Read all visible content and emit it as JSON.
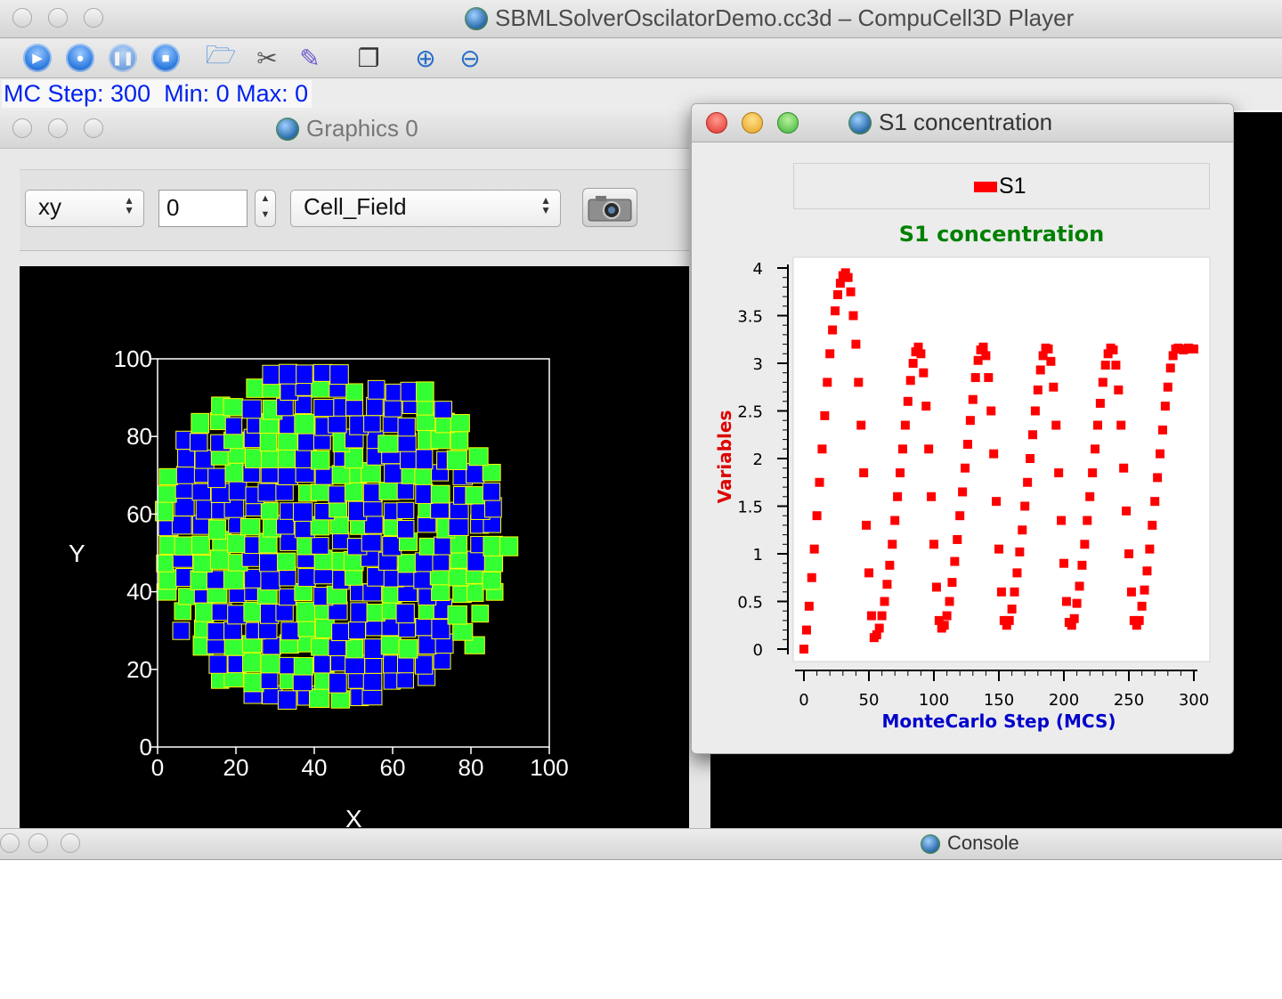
{
  "window": {
    "title": "SBMLSolverOscilatorDemo.cc3d – CompuCell3D Player"
  },
  "toolbar": {
    "buttons": [
      "run-icon",
      "step-icon",
      "pause-icon",
      "stop-icon",
      "open-folder-icon",
      "tools-icon",
      "edit-icon",
      "new-window-icon",
      "zoom-in-icon",
      "zoom-out-icon"
    ]
  },
  "status": {
    "text": "MC Step: 300  Min: 0 Max: 0"
  },
  "graphics": {
    "title": "Graphics 0",
    "projection": "xy",
    "plane_value": "0",
    "field": "Cell_Field",
    "x_label": "X",
    "y_label": "Y",
    "ticks": [
      "0",
      "20",
      "40",
      "60",
      "80",
      "100"
    ],
    "cell_colors": {
      "blue": "#0000ff",
      "green": "#33ff33",
      "border": "#ffff00"
    }
  },
  "plot": {
    "title": "S1 concentration",
    "legend": "S1",
    "series_color": "#ff0000"
  },
  "chart_data": {
    "type": "scatter",
    "title": "S1 concentration",
    "xlabel": "MonteCarlo Step (MCS)",
    "ylabel": "Variables",
    "xlim": [
      0,
      300
    ],
    "ylim": [
      0,
      4
    ],
    "x_ticks": [
      "0",
      "50",
      "100",
      "150",
      "200",
      "250",
      "300"
    ],
    "y_ticks": [
      "0",
      "0.5",
      "1",
      "1.5",
      "2",
      "2.5",
      "3",
      "3.5",
      "4"
    ],
    "legend_position": "top",
    "series": [
      {
        "name": "S1",
        "x": [
          0,
          2,
          4,
          6,
          8,
          10,
          12,
          14,
          16,
          18,
          20,
          22,
          24,
          26,
          28,
          30,
          32,
          34,
          36,
          38,
          40,
          42,
          44,
          46,
          48,
          50,
          52,
          54,
          56,
          58,
          60,
          62,
          64,
          66,
          68,
          70,
          72,
          74,
          76,
          78,
          80,
          82,
          84,
          86,
          88,
          90,
          92,
          94,
          96,
          98,
          100,
          102,
          104,
          106,
          108,
          110,
          112,
          114,
          116,
          118,
          120,
          122,
          124,
          126,
          128,
          130,
          132,
          134,
          136,
          138,
          140,
          142,
          144,
          146,
          148,
          150,
          152,
          154,
          156,
          158,
          160,
          162,
          164,
          166,
          168,
          170,
          172,
          174,
          176,
          178,
          180,
          182,
          184,
          186,
          188,
          190,
          192,
          194,
          196,
          198,
          200,
          202,
          204,
          206,
          208,
          210,
          212,
          214,
          216,
          218,
          220,
          222,
          224,
          226,
          228,
          230,
          232,
          234,
          236,
          238,
          240,
          242,
          244,
          246,
          248,
          250,
          252,
          254,
          256,
          258,
          260,
          262,
          264,
          266,
          268,
          270,
          272,
          274,
          276,
          278,
          280,
          282,
          284,
          286,
          288,
          290,
          292,
          294,
          296,
          298,
          300
        ],
        "y": [
          0,
          0.2,
          0.45,
          0.75,
          1.05,
          1.4,
          1.75,
          2.1,
          2.45,
          2.8,
          3.1,
          3.35,
          3.55,
          3.72,
          3.84,
          3.92,
          3.95,
          3.9,
          3.75,
          3.5,
          3.2,
          2.8,
          2.35,
          1.85,
          1.3,
          0.8,
          0.35,
          0.12,
          0.15,
          0.22,
          0.35,
          0.5,
          0.68,
          0.88,
          1.1,
          1.35,
          1.6,
          1.85,
          2.1,
          2.35,
          2.6,
          2.82,
          3.0,
          3.12,
          3.17,
          3.1,
          2.9,
          2.55,
          2.1,
          1.6,
          1.1,
          0.65,
          0.3,
          0.22,
          0.25,
          0.35,
          0.5,
          0.7,
          0.92,
          1.15,
          1.4,
          1.65,
          1.9,
          2.15,
          2.4,
          2.62,
          2.85,
          3.03,
          3.14,
          3.17,
          3.08,
          2.85,
          2.5,
          2.05,
          1.55,
          1.05,
          0.6,
          0.3,
          0.25,
          0.3,
          0.42,
          0.6,
          0.8,
          1.02,
          1.25,
          1.5,
          1.75,
          2.0,
          2.25,
          2.5,
          2.72,
          2.93,
          3.08,
          3.16,
          3.15,
          3.02,
          2.75,
          2.35,
          1.85,
          1.35,
          0.9,
          0.5,
          0.28,
          0.25,
          0.32,
          0.48,
          0.66,
          0.88,
          1.1,
          1.35,
          1.6,
          1.85,
          2.1,
          2.35,
          2.58,
          2.8,
          2.98,
          3.1,
          3.16,
          3.14,
          2.98,
          2.72,
          2.35,
          1.9,
          1.45,
          1.0,
          0.6,
          0.3,
          0.25,
          0.3,
          0.45,
          0.62,
          0.82,
          1.05,
          1.3,
          1.55,
          1.8,
          2.05,
          2.3,
          2.55,
          2.75,
          2.95,
          3.08,
          3.15,
          3.16,
          3.15,
          3.14,
          3.15,
          3.16,
          3.15,
          3.15
        ]
      }
    ]
  },
  "console": {
    "title": "Console"
  }
}
